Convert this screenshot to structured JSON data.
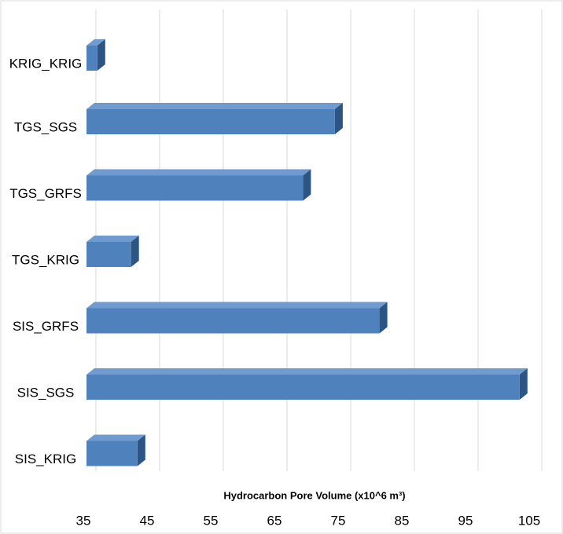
{
  "chart_data": {
    "type": "bar3d",
    "x_label": "Hydrocarbon Pore Volume (x10^6 m³)",
    "categories": [
      "KRIG_KRIG",
      "TGS_SGS",
      "TGS_GRFS",
      "TGS_KRIG",
      "SIS_GRFS",
      "SIS_SGS",
      "SIS_KRIG"
    ],
    "values": [
      36.7,
      74,
      69,
      42,
      81,
      103,
      43
    ],
    "color": "#4f81bd",
    "xlim": [
      35,
      105
    ],
    "xticks": [
      35,
      45,
      55,
      65,
      75,
      85,
      95,
      105
    ],
    "grid": true
  }
}
